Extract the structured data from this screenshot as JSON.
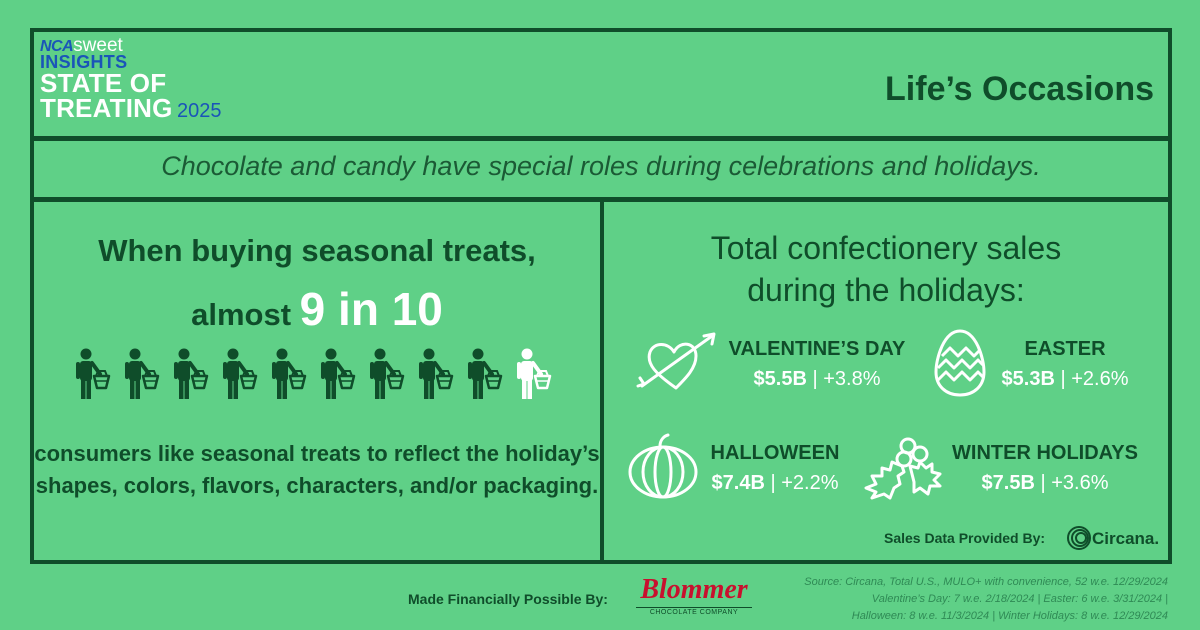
{
  "logo": {
    "nca": "NCA",
    "sweet": "sweet",
    "insights": "INSIGHTS",
    "line1": "STATE OF",
    "line2": "TREATING",
    "year": "2025"
  },
  "title": "Life’s Occasions",
  "subtitle": "Chocolate and candy have special roles during celebrations and holidays.",
  "left_panel": {
    "heading_line1": "When buying seasonal treats,",
    "heading_prefix": "almost",
    "heading_big": "9 in 10",
    "ratio_filled": 9,
    "ratio_total": 10,
    "body": "consumers like seasonal treats to reflect the holiday’s shapes, colors, flavors, characters, and/or packaging."
  },
  "right_panel": {
    "heading_line1": "Total confectionery sales",
    "heading_line2": "during the holidays:",
    "holidays": [
      {
        "name": "VALENTINE’S DAY",
        "amount": "$5.5B",
        "change": "+3.8%",
        "icon": "heart-arrow-icon"
      },
      {
        "name": "EASTER",
        "amount": "$5.3B",
        "change": "+2.6%",
        "icon": "easter-egg-icon"
      },
      {
        "name": "HALLOWEEN",
        "amount": "$7.4B",
        "change": "+2.2%",
        "icon": "pumpkin-icon"
      },
      {
        "name": "WINTER HOLIDAYS",
        "amount": "$7.5B",
        "change": "+3.6%",
        "icon": "holly-icon"
      }
    ],
    "separator": "|",
    "provided_label": "Sales Data Provided By:",
    "provider": "Circana."
  },
  "footer": {
    "made_possible": "Made Financially Possible By:",
    "sponsor": "Blommer",
    "sponsor_sub": "CHOCOLATE COMPANY",
    "source_line1": "Source: Circana, Total U.S., MULO+ with convenience, 52 w.e. 12/29/2024",
    "source_line2": "Valentine’s Day: 7 w.e. 2/18/2024 | Easter: 6 w.e. 3/31/2024 |",
    "source_line3": "Halloween: 8 w.e. 11/3/2024 | Winter Holidays: 8 w.e. 12/29/2024"
  },
  "colors": {
    "background": "#5fd087",
    "dark_green": "#0f4d2a",
    "accent_blue": "#1a55b8",
    "white": "#ffffff",
    "sponsor_red": "#c8102e"
  }
}
